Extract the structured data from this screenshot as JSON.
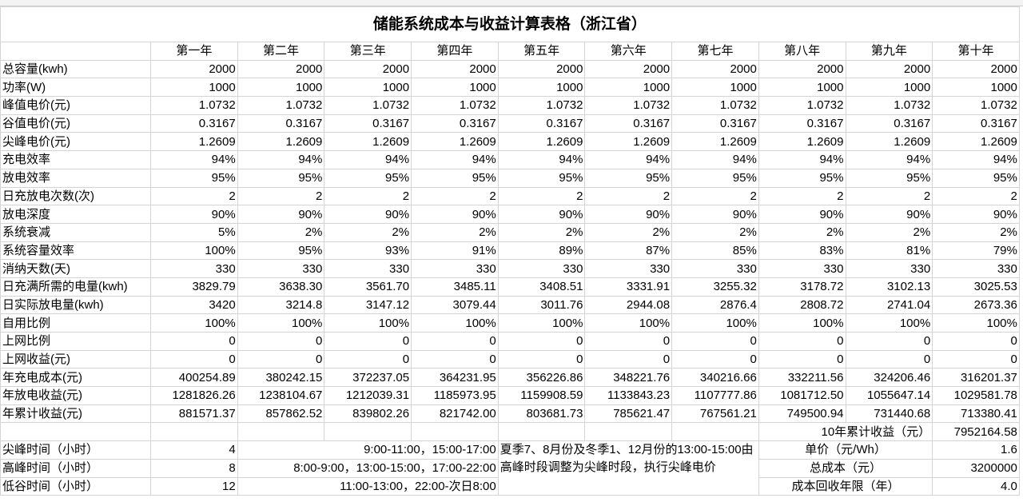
{
  "title": "储能系统成本与收益计算表格（浙江省）",
  "columns": [
    "第一年",
    "第二年",
    "第三年",
    "第四年",
    "第五年",
    "第六年",
    "第七年",
    "第八年",
    "第九年",
    "第十年"
  ],
  "rows": [
    {
      "label": "总容量(kwh)",
      "values": [
        "2000",
        "2000",
        "2000",
        "2000",
        "2000",
        "2000",
        "2000",
        "2000",
        "2000",
        "2000"
      ]
    },
    {
      "label": "功率(W)",
      "values": [
        "1000",
        "1000",
        "1000",
        "1000",
        "1000",
        "1000",
        "1000",
        "1000",
        "1000",
        "1000"
      ]
    },
    {
      "label": "峰值电价(元)",
      "values": [
        "1.0732",
        "1.0732",
        "1.0732",
        "1.0732",
        "1.0732",
        "1.0732",
        "1.0732",
        "1.0732",
        "1.0732",
        "1.0732"
      ]
    },
    {
      "label": "谷值电价(元)",
      "values": [
        "0.3167",
        "0.3167",
        "0.3167",
        "0.3167",
        "0.3167",
        "0.3167",
        "0.3167",
        "0.3167",
        "0.3167",
        "0.3167"
      ]
    },
    {
      "label": "尖峰电价(元)",
      "values": [
        "1.2609",
        "1.2609",
        "1.2609",
        "1.2609",
        "1.2609",
        "1.2609",
        "1.2609",
        "1.2609",
        "1.2609",
        "1.2609"
      ]
    },
    {
      "label": "充电效率",
      "values": [
        "94%",
        "94%",
        "94%",
        "94%",
        "94%",
        "94%",
        "94%",
        "94%",
        "94%",
        "94%"
      ]
    },
    {
      "label": "放电效率",
      "values": [
        "95%",
        "95%",
        "95%",
        "95%",
        "95%",
        "95%",
        "95%",
        "95%",
        "95%",
        "95%"
      ]
    },
    {
      "label": "日充放电次数(次)",
      "values": [
        "2",
        "2",
        "2",
        "2",
        "2",
        "2",
        "2",
        "2",
        "2",
        "2"
      ]
    },
    {
      "label": "放电深度",
      "values": [
        "90%",
        "90%",
        "90%",
        "90%",
        "90%",
        "90%",
        "90%",
        "90%",
        "90%",
        "90%"
      ]
    },
    {
      "label": "系统衰减",
      "values": [
        "5%",
        "2%",
        "2%",
        "2%",
        "2%",
        "2%",
        "2%",
        "2%",
        "2%",
        "2%"
      ]
    },
    {
      "label": "系统容量效率",
      "values": [
        "100%",
        "95%",
        "93%",
        "91%",
        "89%",
        "87%",
        "85%",
        "83%",
        "81%",
        "79%"
      ]
    },
    {
      "label": "消纳天数(天)",
      "values": [
        "330",
        "330",
        "330",
        "330",
        "330",
        "330",
        "330",
        "330",
        "330",
        "330"
      ]
    },
    {
      "label": "日充满所需的电量(kwh)",
      "values": [
        "3829.79",
        "3638.30",
        "3561.70",
        "3485.11",
        "3408.51",
        "3331.91",
        "3255.32",
        "3178.72",
        "3102.13",
        "3025.53"
      ]
    },
    {
      "label": "日实际放电量(kwh)",
      "values": [
        "3420",
        "3214.8",
        "3147.12",
        "3079.44",
        "3011.76",
        "2944.08",
        "2876.4",
        "2808.72",
        "2741.04",
        "2673.36"
      ]
    },
    {
      "label": "自用比例",
      "values": [
        "100%",
        "100%",
        "100%",
        "100%",
        "100%",
        "100%",
        "100%",
        "100%",
        "100%",
        "100%"
      ]
    },
    {
      "label": "上网比例",
      "values": [
        "0",
        "0",
        "0",
        "0",
        "0",
        "0",
        "0",
        "0",
        "0",
        "0"
      ]
    },
    {
      "label": "上网收益(元)",
      "values": [
        "0",
        "0",
        "0",
        "0",
        "0",
        "0",
        "0",
        "0",
        "0",
        "0"
      ]
    },
    {
      "label": "年充电成本(元)",
      "values": [
        "400254.89",
        "380242.15",
        "372237.05",
        "364231.95",
        "356226.86",
        "348221.76",
        "340216.66",
        "332211.56",
        "324206.46",
        "316201.37"
      ]
    },
    {
      "label": "年放电收益(元)",
      "values": [
        "1281826.26",
        "1238104.67",
        "1212039.31",
        "1185973.95",
        "1159908.59",
        "1133843.23",
        "1107777.86",
        "1081712.50",
        "1055647.14",
        "1029581.78"
      ]
    },
    {
      "label": "年累计收益(元)",
      "values": [
        "881571.37",
        "857862.52",
        "839802.26",
        "821742.00",
        "803681.73",
        "785621.47",
        "767561.21",
        "749500.94",
        "731440.68",
        "713380.41"
      ]
    }
  ],
  "summary": {
    "label": "10年累计收益（元）",
    "value": "7952164.58"
  },
  "time_rows": [
    {
      "label": "尖峰时间（小时）",
      "hours": "4",
      "period": "9:00-11:00，15:00-17:00"
    },
    {
      "label": "高峰时间（小时）",
      "hours": "8",
      "period": "8:00-9:00，13:00-15:00，17:00-22:00"
    },
    {
      "label": "低谷时间（小时）",
      "hours": "12",
      "period": "11:00-13:00，22:00-次日8:00"
    }
  ],
  "note": "夏季7、8月份及冬季1、12月份的13:00-15:00由高峰时段调整为尖峰时段，执行尖峰电价",
  "cost_rows": [
    {
      "label": "单价（元/Wh）",
      "value": "1.6"
    },
    {
      "label": "总成本（元）",
      "value": "3200000"
    },
    {
      "label": "成本回收年限（年）",
      "value": "4.0"
    }
  ]
}
